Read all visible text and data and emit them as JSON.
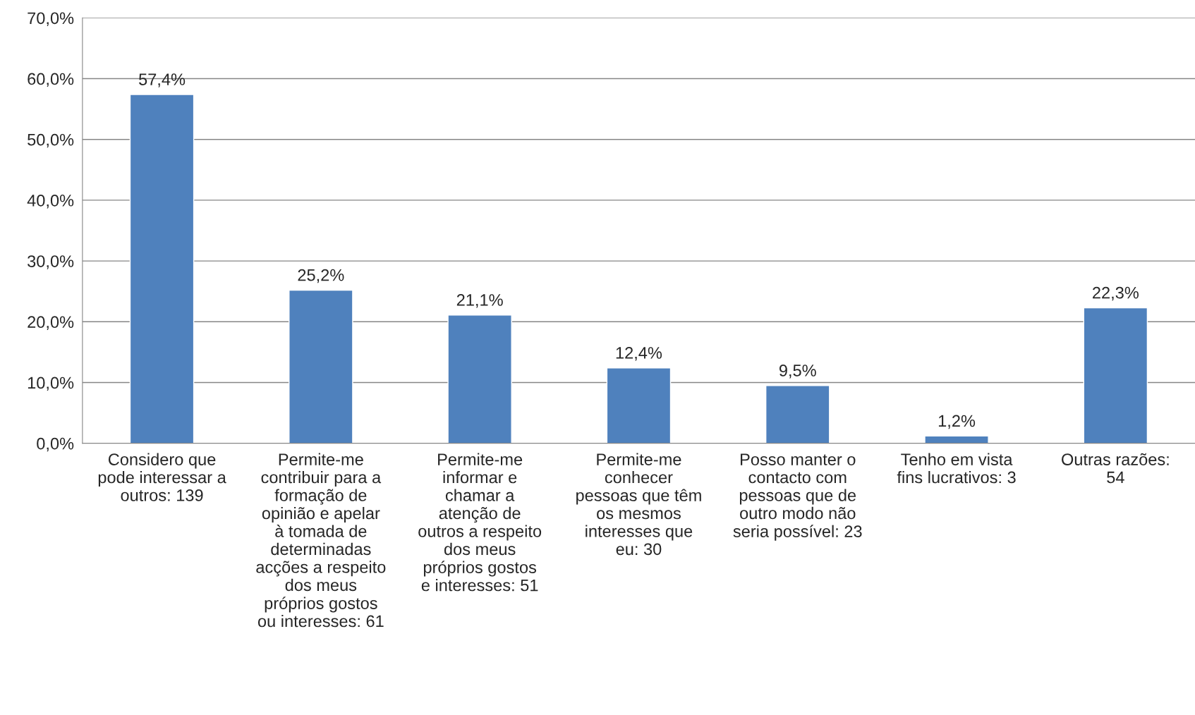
{
  "chart_data": {
    "type": "bar",
    "categories": [
      "Considero que\npode interessar a\noutros: 139",
      "Permite-me\ncontribuir para a\nformação de\nopinião e apelar\nà tomada de\ndeterminadas\nacções a respeito\ndos meus\npróprios gostos\nou interesses: 61",
      "Permite-me\ninformar e\nchamar a\natenção de\noutros a respeito\ndos meus\npróprios gostos\ne interesses: 51",
      "Permite-me\nconhecer\npessoas que têm\nos mesmos\ninteresses que\neu: 30",
      "Posso manter o\ncontacto com\npessoas que de\noutro modo não\nseria possível: 23",
      "Tenho em vista\nfins lucrativos: 3",
      "Outras razões:\n54"
    ],
    "values": [
      57.4,
      25.2,
      21.1,
      12.4,
      9.5,
      1.2,
      22.3
    ],
    "value_labels": [
      "57,4%",
      "25,2%",
      "21,1%",
      "12,4%",
      "9,5%",
      "1,2%",
      "22,3%"
    ],
    "color": "#4f81bd",
    "ylim": [
      0,
      70
    ],
    "yticks": [
      {
        "value": 0,
        "label": "0,0%"
      },
      {
        "value": 10,
        "label": "10,0%"
      },
      {
        "value": 20,
        "label": "20,0%"
      },
      {
        "value": 30,
        "label": "30,0%"
      },
      {
        "value": 40,
        "label": "40,0%"
      },
      {
        "value": 50,
        "label": "50,0%"
      },
      {
        "value": 60,
        "label": "60,0%"
      },
      {
        "value": 70,
        "label": "70,0%"
      }
    ],
    "grid": "y"
  }
}
